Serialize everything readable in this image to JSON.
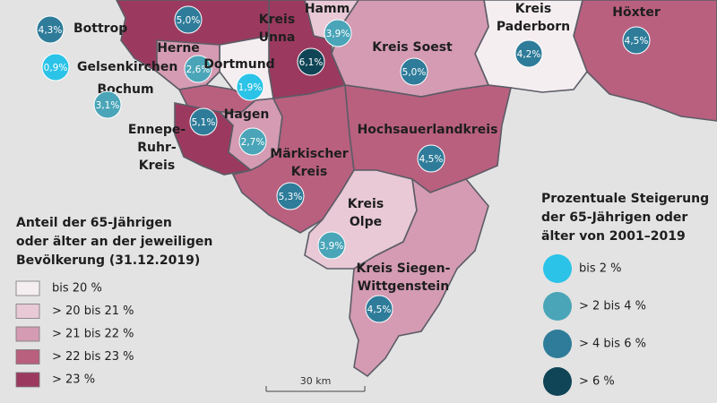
{
  "regions": [
    {
      "name": [],
      "change": "5,0%"
    },
    {
      "name": [
        "Bottrop"
      ],
      "change": "4,3%"
    },
    {
      "name": [
        "Gelsenkirchen"
      ],
      "change": "0,9%"
    },
    {
      "name": [
        "Bochum"
      ],
      "change": "3,1%"
    },
    {
      "name": [
        "Herne"
      ],
      "change": "2,6%"
    },
    {
      "name": [
        "Dortmund"
      ],
      "change": "1,9%"
    },
    {
      "name": [
        "Hagen"
      ],
      "change": "2,7%"
    },
    {
      "name": [
        "Ennepe-",
        "Ruhr-",
        "Kreis"
      ],
      "change": "5,1%"
    },
    {
      "name": [
        "Kreis",
        "Unna"
      ],
      "change": "6,1%"
    },
    {
      "name": [
        "Hamm"
      ],
      "change": "3,9%"
    },
    {
      "name": [
        "Kreis Soest"
      ],
      "change": "5,0%"
    },
    {
      "name": [
        "Kreis",
        "Paderborn"
      ],
      "change": "4,2%"
    },
    {
      "name": [
        "Höxter"
      ],
      "change": "4,5%"
    },
    {
      "name": [
        "Hochsauerlandkreis"
      ],
      "change": "4,5%"
    },
    {
      "name": [
        "Märkischer",
        "Kreis"
      ],
      "change": "5,3%"
    },
    {
      "name": [
        "Kreis",
        "Olpe"
      ],
      "change": "3,9%"
    },
    {
      "name": [
        "Kreis Siegen-",
        "Wittgenstein"
      ],
      "change": "4,5%"
    }
  ],
  "share_legend": {
    "title": [
      "Anteil der 65-Jährigen",
      "oder älter an der jeweiligen",
      "Bevölkerung (31.12.2019)"
    ],
    "items": [
      "bis 20 %",
      "> 20 bis 21 %",
      "> 21 bis 22 %",
      "> 22 bis 23 %",
      "> 23 %"
    ]
  },
  "change_legend": {
    "title": [
      "Prozentuale Steigerung",
      "der 65-Jährigen oder",
      "älter von 2001–2019"
    ],
    "items": [
      "bis 2 %",
      "> 2 bis 4 %",
      "> 4 bis 6 %",
      "> 6 %"
    ]
  },
  "scale": "30 km"
}
